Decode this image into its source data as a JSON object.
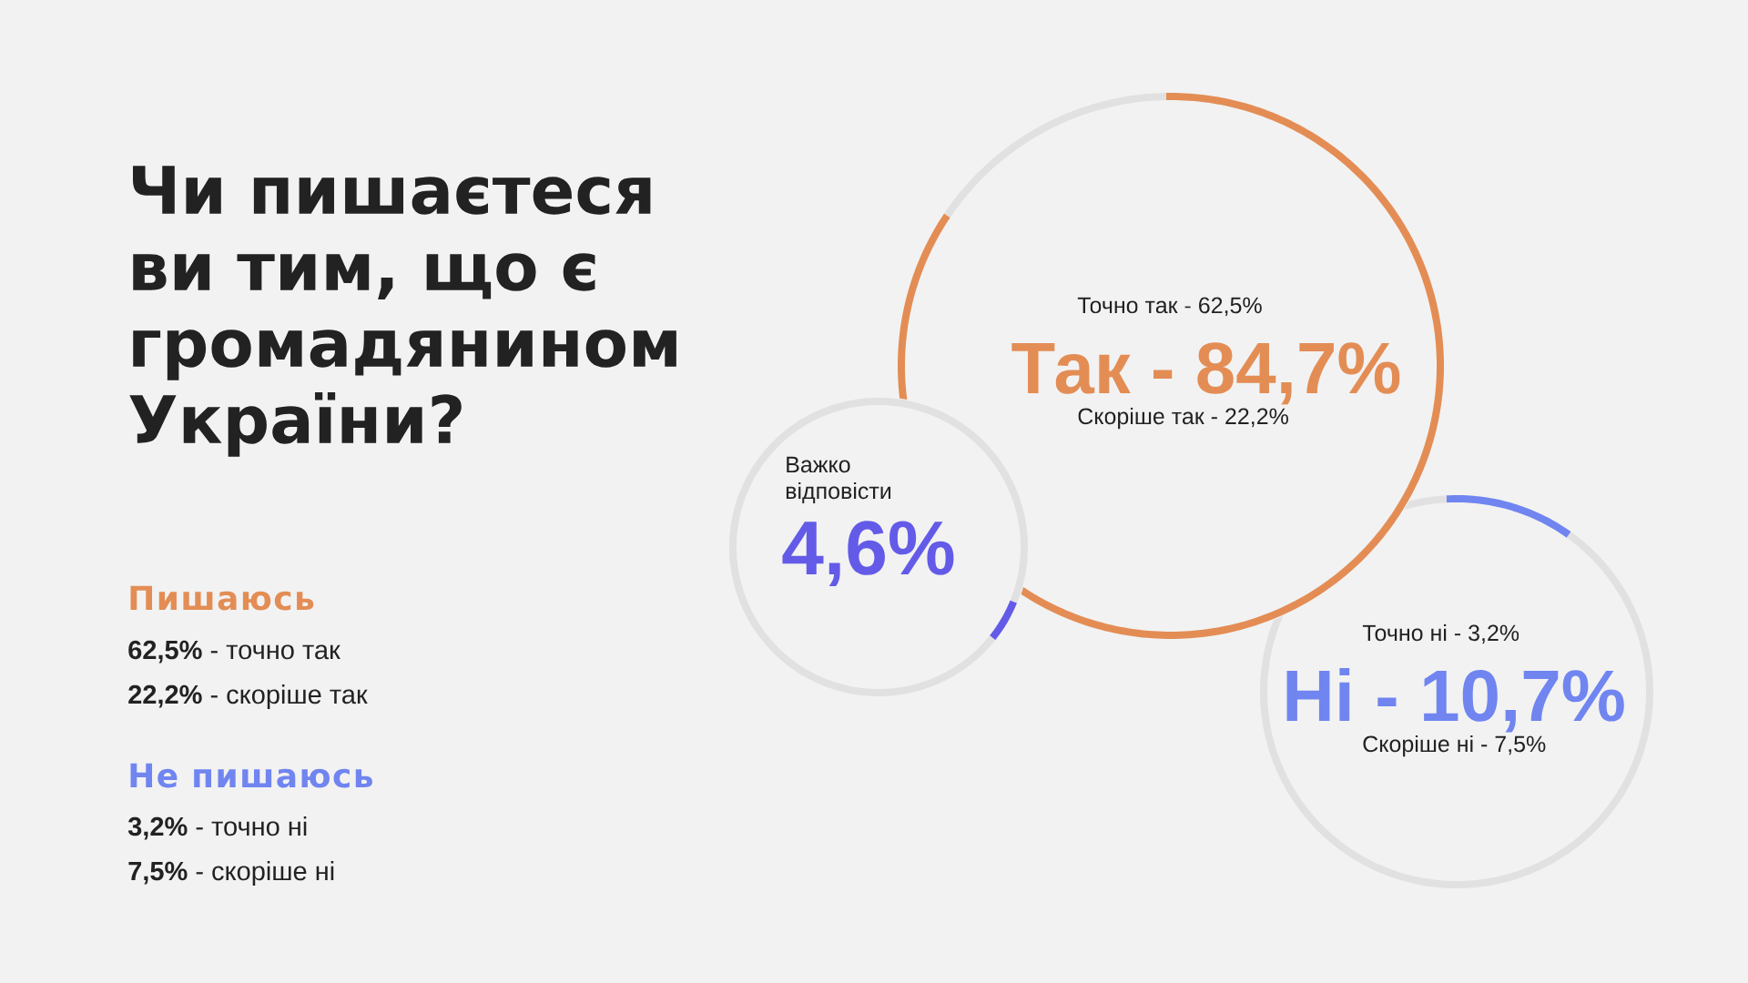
{
  "chart_data": [
    {
      "type": "other",
      "title": "Чи пишаєтеся ви тим, що є громадянином України?",
      "annotations": [
        "Пишаюсь",
        "**62,5%** - точно так",
        "**22,2%** - скоріше так",
        "Не пишаюсь",
        "**3,2%** - точно ні",
        "**7,5%** - скоріше ні"
      ]
    },
    {
      "type": "donut",
      "title": "Так - 84,7%",
      "categories": [
        null,
        null
      ],
      "values": [
        84.7,
        15.3
      ],
      "colors": [
        "#e38d55",
        "#e0e1e0"
      ],
      "annotations": [
        "Точно так - 62,5%",
        "Скоріше так - 22,2%"
      ]
    },
    {
      "type": "donut",
      "title": "Важко відповісти",
      "subtitle": "4,6%",
      "categories": [
        null,
        null
      ],
      "values": [
        4.6,
        95.4
      ],
      "colors": [
        "#635be8",
        "#e0e1e0"
      ]
    },
    {
      "type": "donut",
      "title": "Ні - 10,7%",
      "categories": [
        null,
        null
      ],
      "values": [
        10.7,
        89.3
      ],
      "colors": [
        "#7085f0",
        "#e0e1e0"
      ],
      "annotations": [
        "Точно ні - 3,2%",
        "Скоріше ні - 7,5%"
      ]
    }
  ]
}
